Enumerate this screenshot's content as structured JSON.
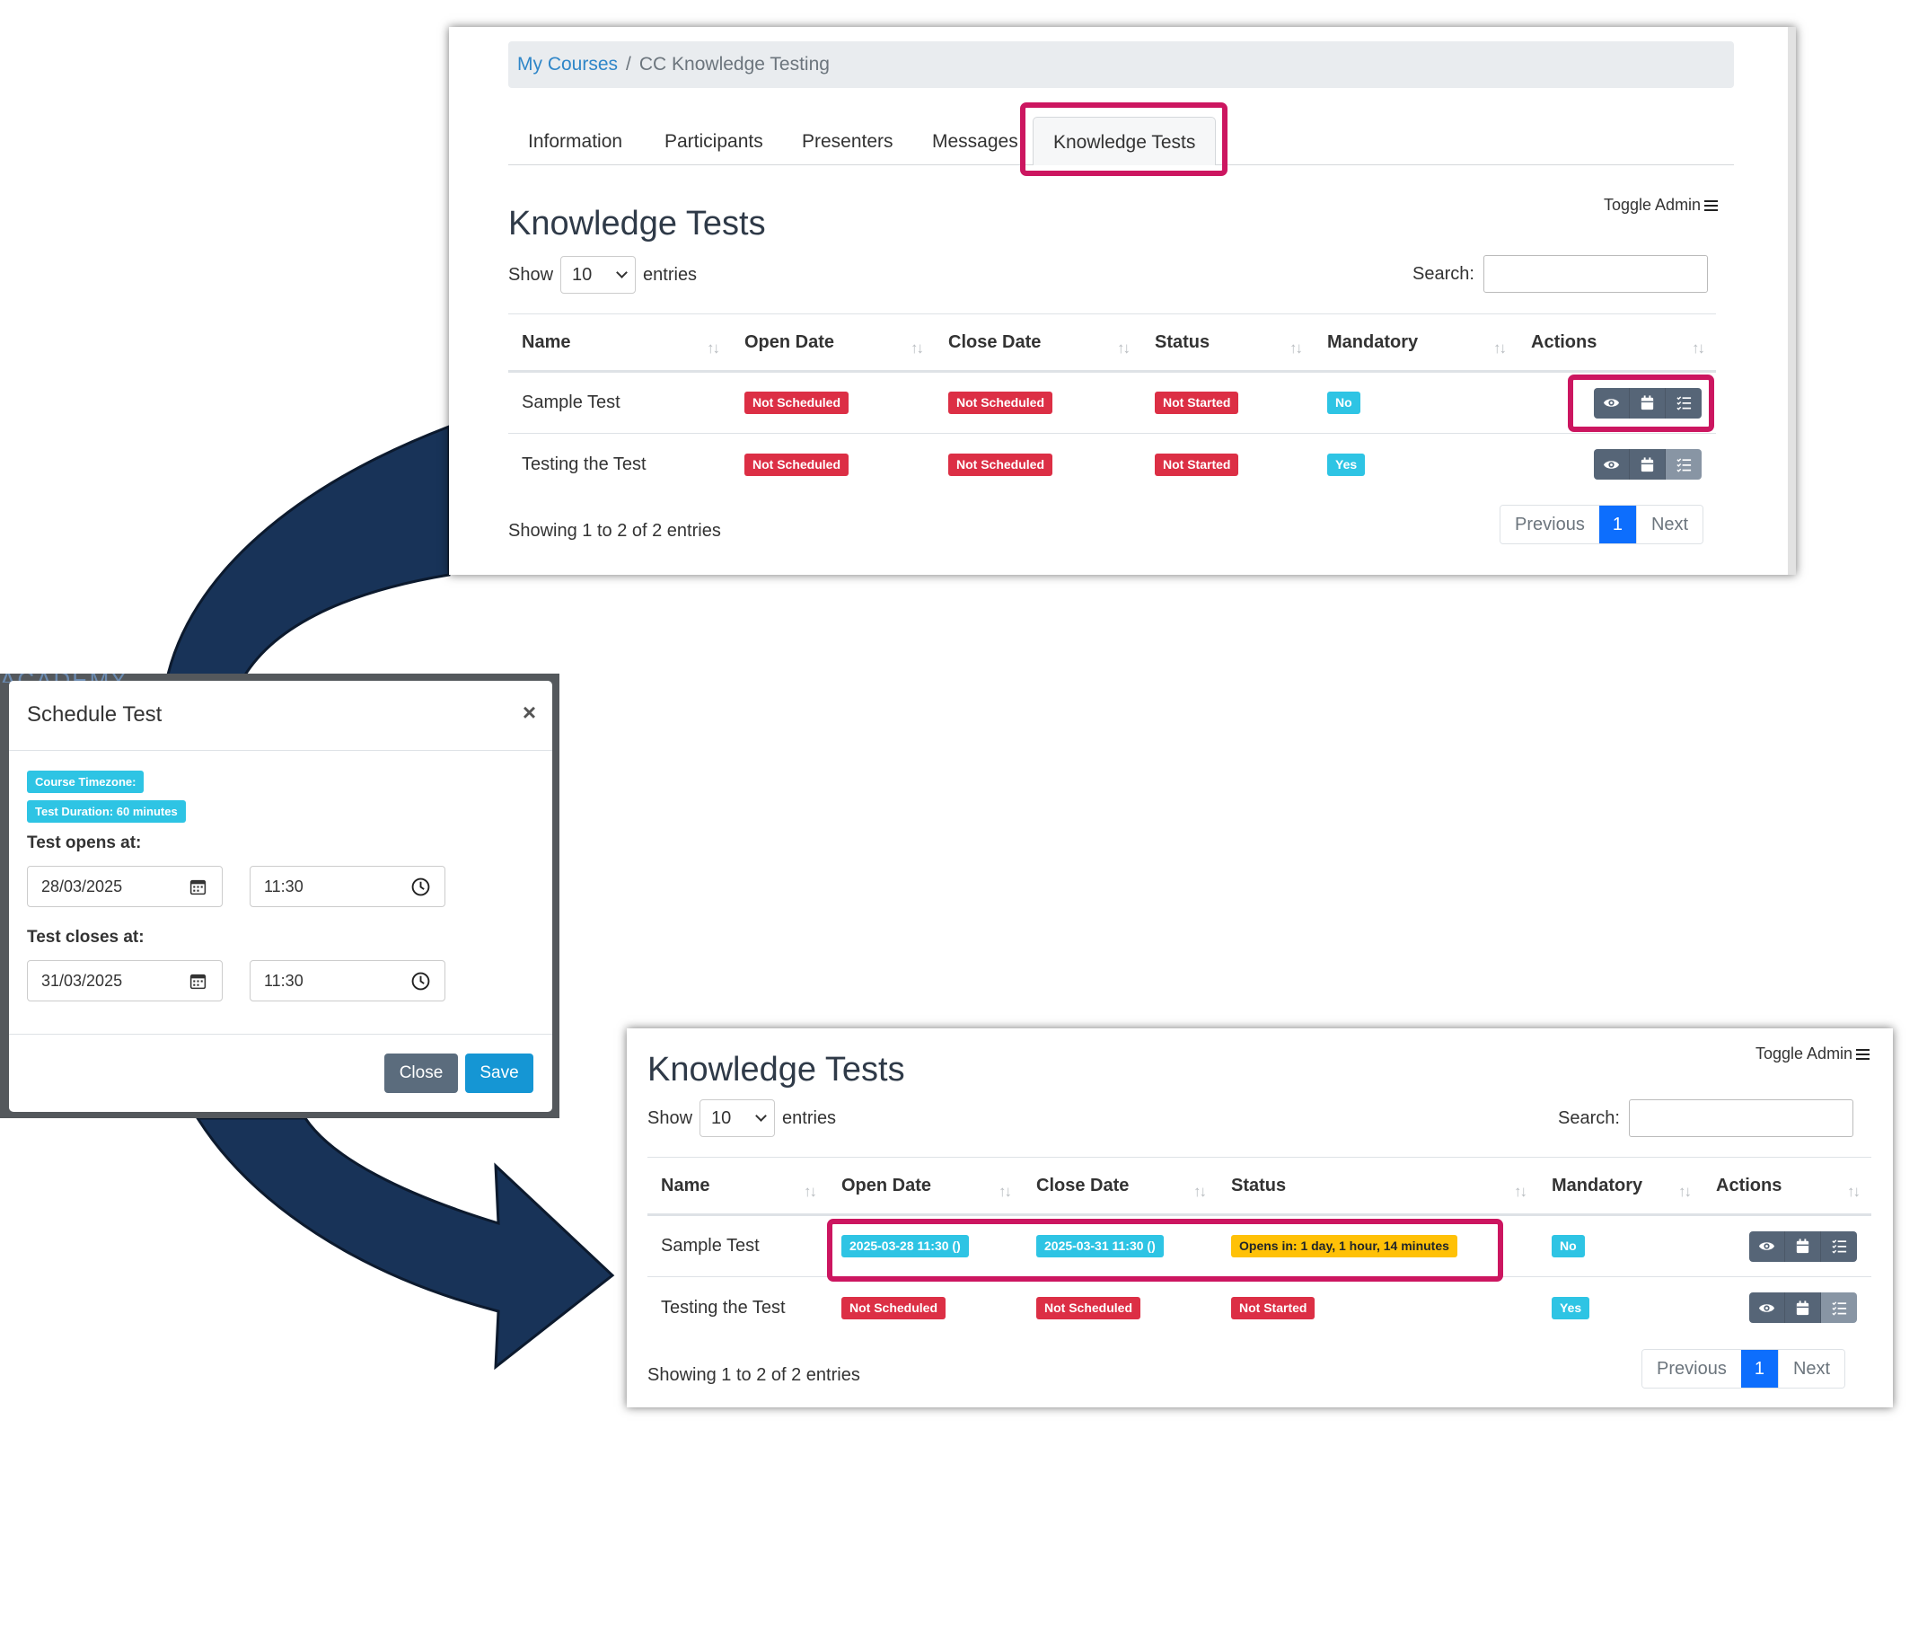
{
  "colors": {
    "highlight": "#cc1660",
    "arrow": "#183358",
    "badge_red": "#dc2f45",
    "badge_cyan": "#2ec4e4",
    "badge_yellow": "#ffc107",
    "primary": "#0d6efd"
  },
  "breadcrumb": {
    "home": "My Courses",
    "separator": "/",
    "current": "CC Knowledge Testing"
  },
  "tabs": [
    {
      "label": "Information"
    },
    {
      "label": "Participants"
    },
    {
      "label": "Presenters"
    },
    {
      "label": "Messages"
    },
    {
      "label": "Knowledge Tests"
    }
  ],
  "before": {
    "title": "Knowledge Tests",
    "toggle_admin": "Toggle Admin",
    "show_label": "Show",
    "page_size": "10",
    "entries_label": "entries",
    "search_label": "Search:",
    "search_value": "",
    "columns": [
      "Name",
      "Open Date",
      "Close Date",
      "Status",
      "Mandatory",
      "Actions"
    ],
    "sort_glyph": "↑↓",
    "rows": [
      {
        "name": "Sample Test",
        "open": "Not Scheduled",
        "close": "Not Scheduled",
        "status": "Not Started",
        "mandatory": "No"
      },
      {
        "name": "Testing the Test",
        "open": "Not Scheduled",
        "close": "Not Scheduled",
        "status": "Not Started",
        "mandatory": "Yes"
      }
    ],
    "info": "Showing 1 to 2 of 2 entries",
    "pager": {
      "previous": "Previous",
      "current": "1",
      "next": "Next"
    }
  },
  "modal": {
    "backdrop_text": "ACADEMY",
    "title": "Schedule Test",
    "close_glyph": "×",
    "timezone_badge": "Course Timezone:",
    "duration_badge": "Test Duration: 60 minutes",
    "opens_label": "Test opens at:",
    "opens_date": "28/03/2025",
    "opens_time": "11:30",
    "closes_label": "Test closes at:",
    "closes_date": "31/03/2025",
    "closes_time": "11:30",
    "close_button": "Close",
    "save_button": "Save"
  },
  "after": {
    "title": "Knowledge Tests",
    "toggle_admin": "Toggle Admin",
    "show_label": "Show",
    "page_size": "10",
    "entries_label": "entries",
    "search_label": "Search:",
    "search_value": "",
    "columns": [
      "Name",
      "Open Date",
      "Close Date",
      "Status",
      "Mandatory",
      "Actions"
    ],
    "sort_glyph": "↑↓",
    "rows": [
      {
        "name": "Sample Test",
        "open": "2025-03-28 11:30 ()",
        "close": "2025-03-31 11:30 ()",
        "status": "Opens in: 1 day, 1 hour, 14 minutes",
        "mandatory": "No"
      },
      {
        "name": "Testing the Test",
        "open": "Not Scheduled",
        "close": "Not Scheduled",
        "status": "Not Started",
        "mandatory": "Yes"
      }
    ],
    "info": "Showing 1 to 2 of 2 entries",
    "pager": {
      "previous": "Previous",
      "current": "1",
      "next": "Next"
    }
  },
  "icons": {
    "view": "eye-icon",
    "schedule": "calendar-icon",
    "results": "list-check-icon",
    "date_picker": "calendar-icon",
    "time_picker": "clock-icon"
  }
}
